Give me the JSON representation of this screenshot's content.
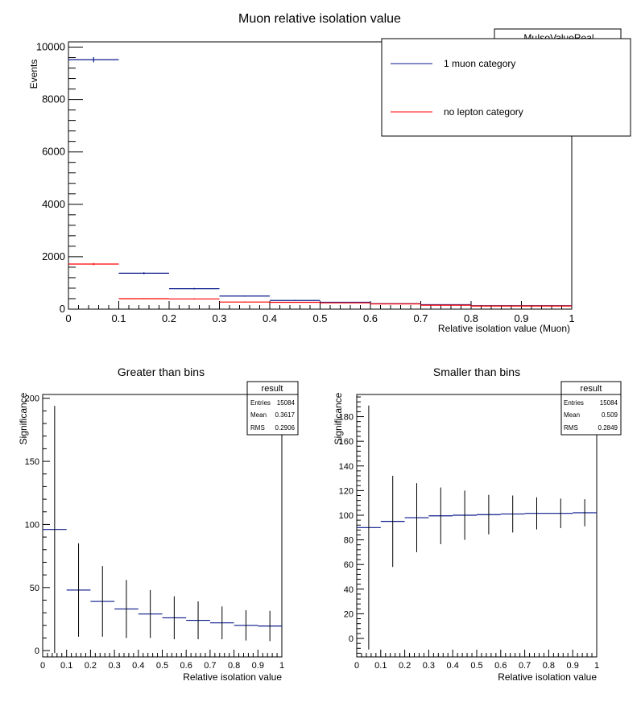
{
  "chart_data": [
    {
      "type": "histogram",
      "title": "Muon relative isolation value",
      "xlabel": "Relative isolation value (Muon)",
      "ylabel": "Events",
      "xlim": [
        0,
        1
      ],
      "ylim": [
        0,
        10200
      ],
      "xticks": [
        "0",
        "0.1",
        "0.2",
        "0.3",
        "0.4",
        "0.5",
        "0.6",
        "0.7",
        "0.8",
        "0.9",
        "1"
      ],
      "yticks": [
        "0",
        "2000",
        "4000",
        "6000",
        "8000",
        "10000"
      ],
      "stats_box_label": "MuIsoValueReal",
      "legend_position": "top-right",
      "bins": [
        [
          0,
          0.1
        ],
        [
          0.1,
          0.2
        ],
        [
          0.2,
          0.3
        ],
        [
          0.3,
          0.4
        ],
        [
          0.4,
          0.5
        ],
        [
          0.5,
          0.6
        ],
        [
          0.6,
          0.7
        ],
        [
          0.7,
          0.8
        ],
        [
          0.8,
          1.0
        ]
      ],
      "series": [
        {
          "name": "1 muon category",
          "color": "#0a1a8c",
          "values": [
            9520,
            1370,
            780,
            500,
            330,
            260,
            210,
            170,
            130
          ],
          "errors": [
            100,
            37,
            28,
            22,
            18,
            16,
            15,
            13,
            12
          ]
        },
        {
          "name": "no lepton category",
          "color": "#ff0000",
          "values": [
            1720,
            400,
            390,
            270,
            260,
            240,
            200,
            150,
            120
          ],
          "errors": [
            41,
            20,
            20,
            16,
            16,
            16,
            14,
            12,
            11
          ]
        }
      ]
    },
    {
      "type": "histogram",
      "title": "Greater than bins",
      "xlabel": "Relative isolation value",
      "ylabel": "Significance",
      "xlim": [
        0,
        1
      ],
      "ylim": [
        -5,
        203
      ],
      "xticks": [
        "0",
        "0.1",
        "0.2",
        "0.3",
        "0.4",
        "0.5",
        "0.6",
        "0.7",
        "0.8",
        "0.9",
        "1"
      ],
      "yticks": [
        "0",
        "50",
        "100",
        "150",
        "200"
      ],
      "color": "#0a1a8c",
      "x": [
        0.05,
        0.15,
        0.25,
        0.35,
        0.45,
        0.55,
        0.65,
        0.75,
        0.85,
        0.95
      ],
      "values": [
        96,
        48,
        39,
        33,
        29,
        26,
        24,
        22,
        20,
        19.5
      ],
      "errors": [
        98,
        37,
        28,
        23,
        19,
        17,
        15,
        13,
        12,
        12
      ],
      "stats": {
        "title": "result",
        "rows": [
          [
            "Entries",
            "15084"
          ],
          [
            "Mean",
            "0.3617"
          ],
          [
            "RMS",
            "0.2906"
          ]
        ]
      }
    },
    {
      "type": "histogram",
      "title": "Smaller than bins",
      "xlabel": "Relative isolation value",
      "ylabel": "Significance",
      "xlim": [
        0,
        1
      ],
      "ylim": [
        -15,
        198
      ],
      "xticks": [
        "0",
        "0.1",
        "0.2",
        "0.3",
        "0.4",
        "0.5",
        "0.6",
        "0.7",
        "0.8",
        "0.9",
        "1"
      ],
      "yticks": [
        "0",
        "20",
        "40",
        "60",
        "80",
        "100",
        "120",
        "140",
        "160",
        "180"
      ],
      "color": "#0a1a8c",
      "x": [
        0.05,
        0.15,
        0.25,
        0.35,
        0.45,
        0.55,
        0.65,
        0.75,
        0.85,
        0.95
      ],
      "values": [
        90,
        95,
        98,
        99.5,
        100,
        100.5,
        101,
        101.5,
        101.5,
        102
      ],
      "errors": [
        99,
        37,
        28,
        23,
        20,
        16,
        15,
        13,
        12,
        11
      ],
      "stats": {
        "title": "result",
        "rows": [
          [
            "Entries",
            "15084"
          ],
          [
            "Mean",
            "0.509"
          ],
          [
            "RMS",
            "0.2849"
          ]
        ]
      }
    }
  ]
}
